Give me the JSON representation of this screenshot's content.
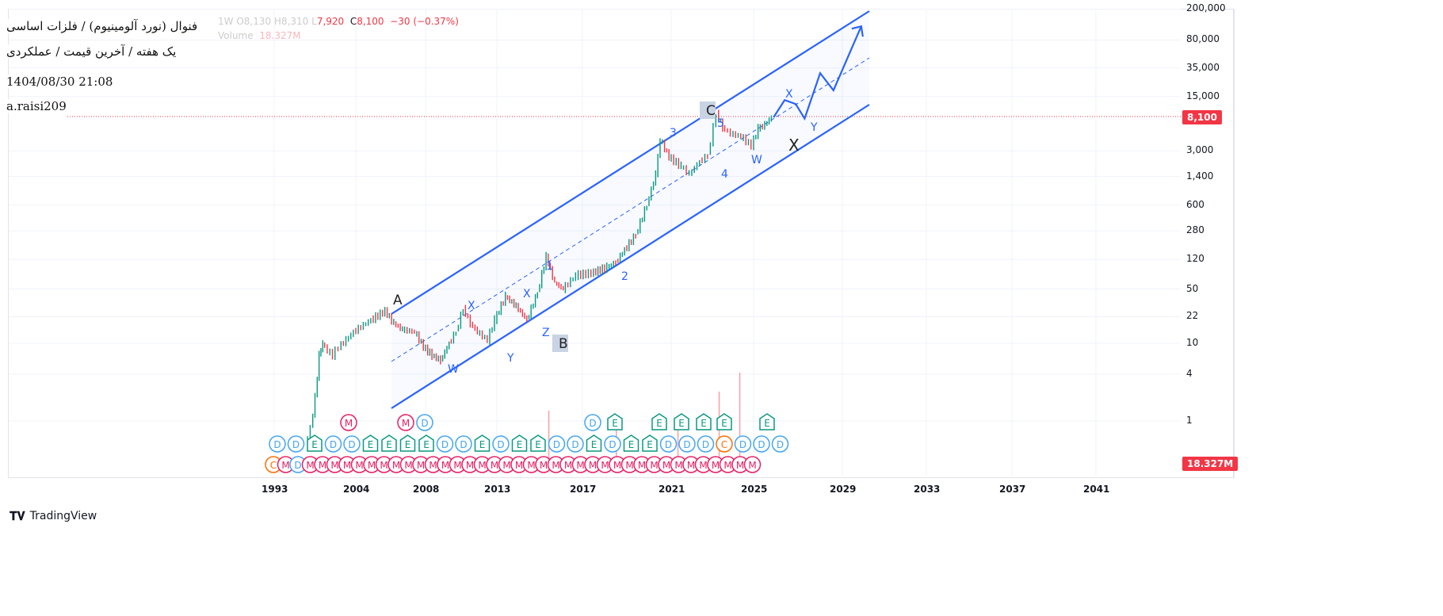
{
  "legend": {
    "ohlc_faint": "1W  O8,130  H8,310  L",
    "ohlc_low": "7,920",
    "close_label": "C",
    "close": "8,100",
    "change": "−30 (−0.37%)",
    "volume_label": "Volume",
    "volume_value": "18.327M"
  },
  "header": {
    "title": "فنوال (نورد آلومینیوم) / فلزات اساسی",
    "subtitle": "یک هفته / آخرین قیمت / عملکردی",
    "datetime": "1404/08/30 21:08",
    "author": "a.raisi209"
  },
  "last_price_badge": "8,100",
  "volume_badge": "18.327M",
  "footer": {
    "brand": "TradingView"
  },
  "colors": {
    "up": "#089981",
    "down": "#f23645",
    "drawing": "#2962ff"
  },
  "chart_data": {
    "type": "line",
    "scale": "log",
    "price_ticks": [
      "200,000",
      "80,000",
      "35,000",
      "15,000",
      "3,000",
      "1,400",
      "600",
      "280",
      "120",
      "50",
      "22",
      "10",
      "4",
      "1"
    ],
    "price_tick_values": [
      200000,
      80000,
      35000,
      15000,
      3000,
      1400,
      600,
      280,
      120,
      50,
      22,
      10,
      4,
      1
    ],
    "time_ticks": [
      "1993",
      "2004",
      "2008",
      "2013",
      "2017",
      "2021",
      "2025",
      "2029",
      "2033",
      "2037",
      "2041"
    ],
    "series": [
      {
        "name": "price",
        "points": [
          [
            1997.5,
            0.5
          ],
          [
            1998.2,
            0.8
          ],
          [
            1998.8,
            2
          ],
          [
            1999.3,
            7
          ],
          [
            1999.8,
            10
          ],
          [
            2000.5,
            8
          ],
          [
            2001.2,
            7
          ],
          [
            2002,
            9
          ],
          [
            2003,
            11
          ],
          [
            2004,
            14
          ],
          [
            2005,
            20
          ],
          [
            2005.8,
            26
          ],
          [
            2006.3,
            18
          ],
          [
            2006.8,
            15
          ],
          [
            2007.5,
            14
          ],
          [
            2008,
            9
          ],
          [
            2008.6,
            7
          ],
          [
            2009.2,
            6
          ],
          [
            2009.8,
            10
          ],
          [
            2010.3,
            14
          ],
          [
            2010.8,
            28
          ],
          [
            2011.3,
            18
          ],
          [
            2011.8,
            14
          ],
          [
            2012.5,
            11
          ],
          [
            2013,
            20
          ],
          [
            2013.5,
            40
          ],
          [
            2014,
            30
          ],
          [
            2014.5,
            20
          ],
          [
            2015,
            45
          ],
          [
            2015.4,
            130
          ],
          [
            2015.8,
            60
          ],
          [
            2016.2,
            50
          ],
          [
            2016.8,
            75
          ],
          [
            2017.5,
            80
          ],
          [
            2018.2,
            95
          ],
          [
            2018.6,
            110
          ],
          [
            2019,
            160
          ],
          [
            2019.5,
            250
          ],
          [
            2020,
            600
          ],
          [
            2020.4,
            1500
          ],
          [
            2020.6,
            4200
          ],
          [
            2021,
            2500
          ],
          [
            2021.6,
            1900
          ],
          [
            2022,
            1500
          ],
          [
            2022.5,
            2200
          ],
          [
            2022.9,
            2600
          ],
          [
            2023.3,
            9000
          ],
          [
            2023.6,
            6000
          ],
          [
            2024,
            5000
          ],
          [
            2024.5,
            4600
          ],
          [
            2025,
            3500
          ],
          [
            2025.3,
            5800
          ],
          [
            2025.6,
            6500
          ],
          [
            2025.9,
            8100
          ]
        ]
      }
    ],
    "projection": [
      [
        2025.9,
        8100
      ],
      [
        2026.4,
        13500
      ],
      [
        2026.9,
        12000
      ],
      [
        2027.3,
        7800
      ],
      [
        2028,
        30000
      ],
      [
        2028.6,
        18000
      ],
      [
        2029.9,
        120000
      ]
    ],
    "volume_spikes": [
      [
        2015.4,
        0.6
      ],
      [
        2018.5,
        0.4
      ],
      [
        2021.3,
        0.5
      ],
      [
        2023.3,
        0.8
      ],
      [
        2024.3,
        1
      ]
    ],
    "wave_labels": [
      "A",
      "B",
      "C",
      "W",
      "X",
      "Y",
      "X",
      "Z",
      "1",
      "2",
      "3",
      "4",
      "5",
      "W",
      "X",
      "Y",
      "X"
    ],
    "event_markers_row1": [
      "D",
      "D",
      "E",
      "D",
      "D",
      "E",
      "E",
      "E",
      "E",
      "D",
      "D",
      "E",
      "D",
      "E",
      "E",
      "D",
      "D",
      "E",
      "D",
      "E",
      "E",
      "D",
      "D",
      "D",
      "C",
      "D",
      "D",
      "D"
    ],
    "event_markers_row1_up": [
      "M",
      "D",
      "M",
      "D",
      "E",
      "E",
      "E",
      "E",
      "E",
      "E"
    ],
    "event_markers_row2": [
      "C",
      "M",
      "D",
      "M",
      "M",
      "M",
      "M",
      "M",
      "M",
      "M",
      "M",
      "M",
      "M",
      "M",
      "M",
      "M",
      "M",
      "M",
      "M",
      "M",
      "M",
      "M",
      "M",
      "M",
      "M",
      "M",
      "M",
      "M",
      "M",
      "M",
      "M",
      "M",
      "M",
      "M",
      "M",
      "M",
      "M",
      "M",
      "M",
      "M"
    ]
  }
}
